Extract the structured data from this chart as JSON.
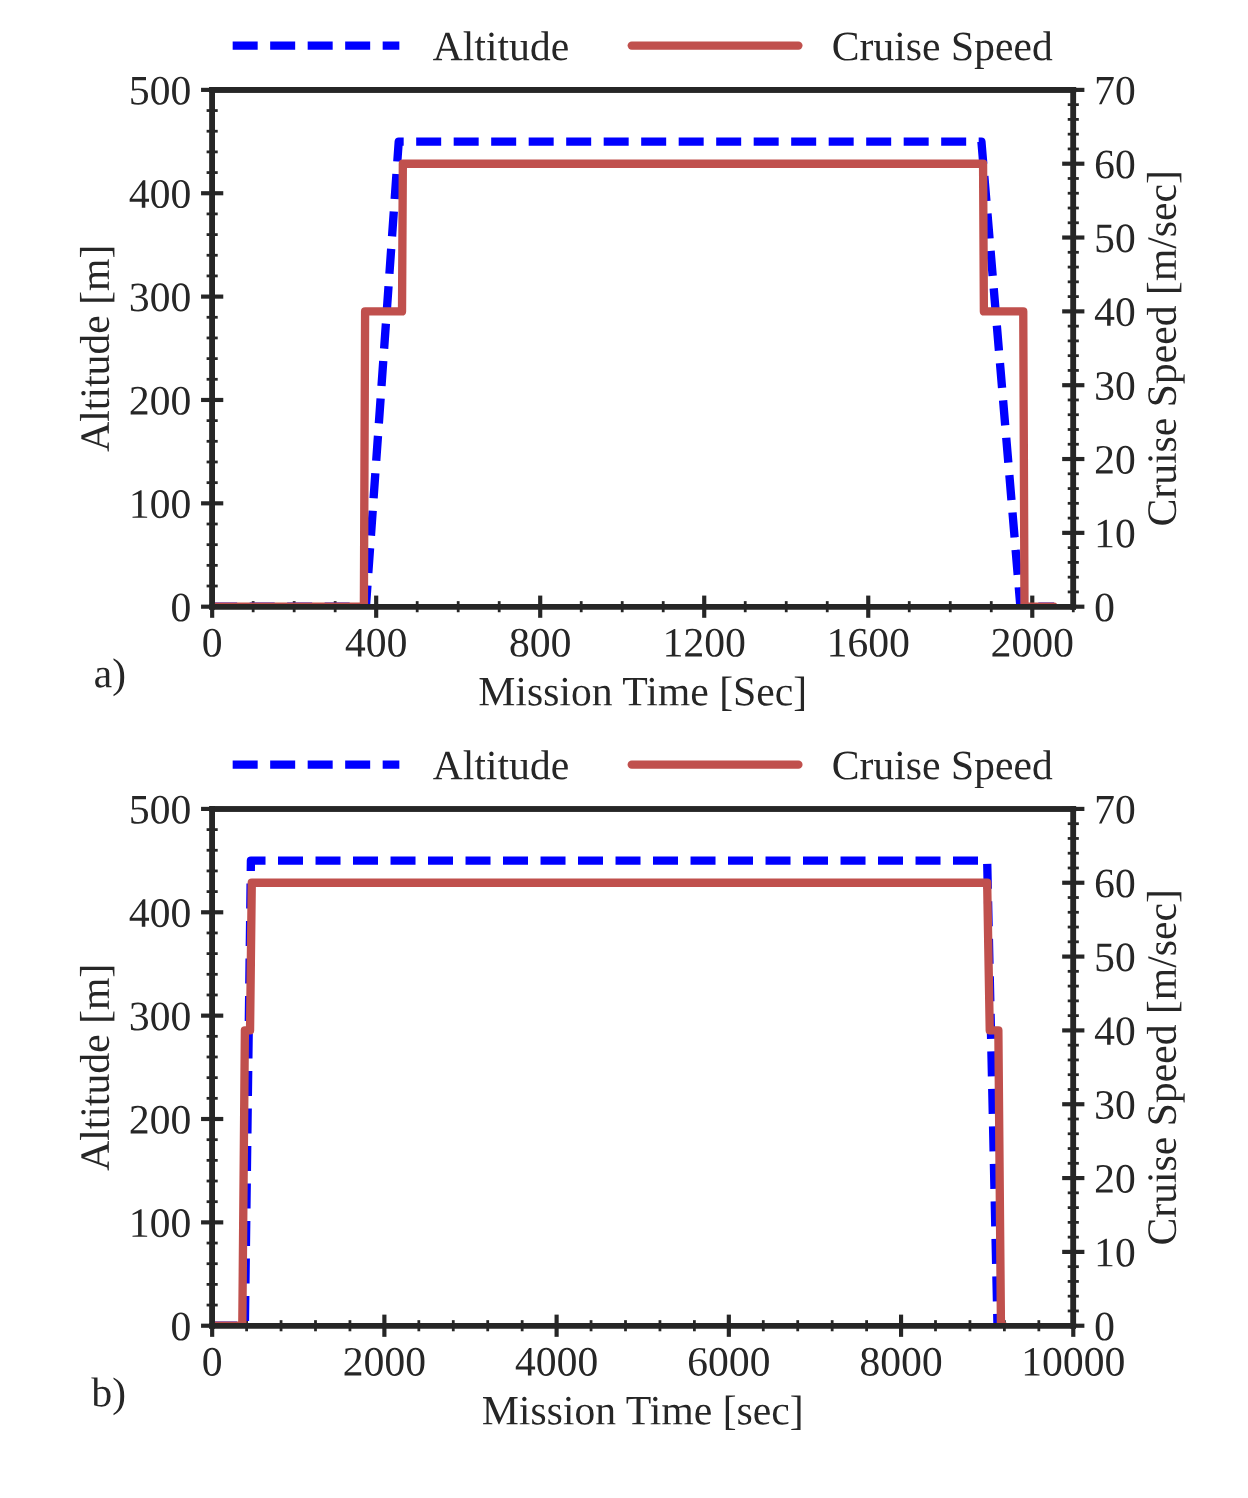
{
  "chart_data": [
    {
      "type": "line",
      "xlabel": "Mission Time [Sec]",
      "ylabel": "Altitude [m]",
      "y2label": "Cruise Speed [m/sec]",
      "annotations": [
        "a)"
      ],
      "legend": "top",
      "xlim": [
        0,
        2100
      ],
      "xticks": [
        0,
        400,
        800,
        1200,
        1600,
        2000
      ],
      "ylim": [
        0,
        500
      ],
      "yticks": [
        0,
        100,
        200,
        300,
        400,
        500
      ],
      "y2lim": [
        0,
        70
      ],
      "y2ticks": [
        0,
        10,
        20,
        30,
        40,
        50,
        60,
        70
      ],
      "series": [
        {
          "name": "Altitude",
          "color": "#0000ff",
          "line_style": "dashed",
          "axis": "y",
          "x": [
            0,
            375,
            455,
            1876,
            1971,
            2053
          ],
          "values": [
            0,
            0,
            450,
            450,
            0,
            0
          ]
        },
        {
          "name": "Cruise Speed",
          "color": "#c0504d",
          "line_style": "solid",
          "axis": "y2",
          "x": [
            0,
            370,
            373,
            463,
            465,
            1880,
            1882,
            1978,
            1981,
            2053
          ],
          "values": [
            0,
            0,
            40,
            40,
            60,
            60,
            40,
            40,
            0,
            0
          ]
        }
      ]
    },
    {
      "type": "line",
      "xlabel": "Mission Time [sec]",
      "ylabel": "Altitude [m]",
      "y2label": "Cruise Speed [m/sec]",
      "annotations": [
        "b)"
      ],
      "legend": "top",
      "xlim": [
        0,
        10000
      ],
      "xticks": [
        0,
        2000,
        4000,
        6000,
        8000,
        10000
      ],
      "ylim": [
        0,
        500
      ],
      "yticks": [
        0,
        100,
        200,
        300,
        400,
        500
      ],
      "y2lim": [
        0,
        70
      ],
      "y2ticks": [
        0,
        10,
        20,
        30,
        40,
        50,
        60,
        70
      ],
      "series": [
        {
          "name": "Altitude",
          "color": "#0000ff",
          "line_style": "dashed",
          "axis": "y",
          "x": [
            0,
            380,
            450,
            9000,
            9120,
            9190
          ],
          "values": [
            0,
            0,
            450,
            450,
            0,
            0
          ]
        },
        {
          "name": "Cruise Speed",
          "color": "#c0504d",
          "line_style": "solid",
          "axis": "y2",
          "x": [
            0,
            350,
            380,
            440,
            460,
            9000,
            9030,
            9130,
            9160,
            9190
          ],
          "values": [
            0,
            0,
            40,
            40,
            60,
            60,
            40,
            40,
            0,
            0
          ]
        }
      ]
    }
  ]
}
